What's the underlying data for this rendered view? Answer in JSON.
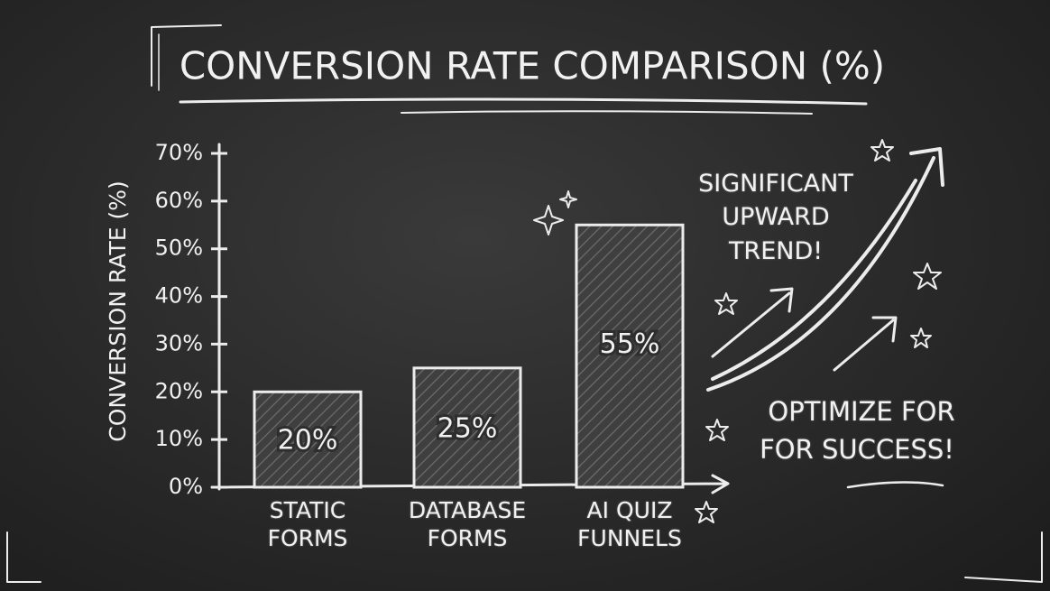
{
  "chart_data": {
    "type": "bar",
    "title": "CONVERSION RATE COMPARISON (%)",
    "y_label": "CONVERSION RATE (%)",
    "categories": [
      "STATIC FORMS",
      "DATABASE FORMS",
      "AI QUIZ FUNNELS"
    ],
    "values": [
      20,
      25,
      55
    ],
    "value_labels": [
      "20%",
      "25%",
      "55%"
    ],
    "color": "#4a4a4a",
    "ylim": [
      0,
      70
    ],
    "yticks": [
      {
        "value": 0,
        "label": "0%"
      },
      {
        "value": 10,
        "label": "10%"
      },
      {
        "value": 20,
        "label": "20%"
      },
      {
        "value": 30,
        "label": "30%"
      },
      {
        "value": 40,
        "label": "40%"
      },
      {
        "value": 50,
        "label": "50%"
      },
      {
        "value": 60,
        "label": "60%"
      },
      {
        "value": 70,
        "label": "70%"
      }
    ],
    "grid": false,
    "annotations": [
      "SIGNIFICANT UPWARD TREND!",
      "OPTIMIZE FOR",
      "FOR SUCCESS!"
    ]
  }
}
